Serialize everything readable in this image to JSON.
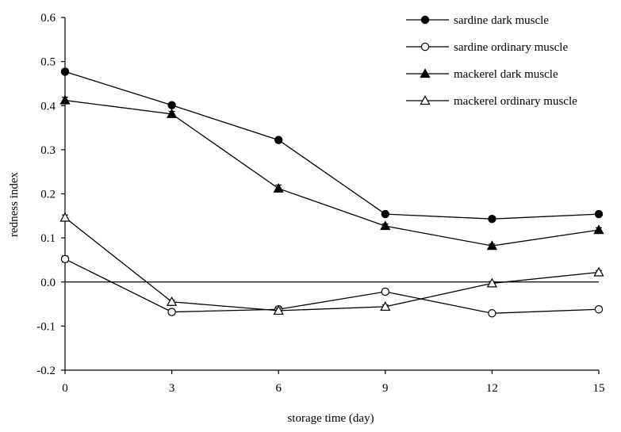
{
  "chart_data": {
    "type": "line",
    "title": "",
    "xlabel": "storage time (day)",
    "ylabel": "redness index",
    "x": [
      0,
      3,
      6,
      9,
      12,
      15
    ],
    "xticks": [
      "0",
      "3",
      "6",
      "9",
      "12",
      "15"
    ],
    "yticks": [
      "0.6",
      "0.5",
      "0.4",
      "0.3",
      "0.2",
      "0.1",
      "0.0",
      "-0.1",
      "-0.2"
    ],
    "xlim": [
      0,
      15
    ],
    "ylim": [
      -0.2,
      0.6
    ],
    "grid": false,
    "zero_line": true,
    "legend_position": "top-right",
    "series": [
      {
        "name": "sardine dark muscle",
        "marker": "filled-circle",
        "values": [
          0.477,
          0.401,
          0.322,
          0.154,
          0.143,
          0.154
        ],
        "errors": [
          0.006,
          0.004,
          0.004,
          0.004,
          0.004,
          0.004
        ]
      },
      {
        "name": "sardine ordinary muscle",
        "marker": "open-circle",
        "values": [
          0.052,
          -0.068,
          -0.062,
          -0.022,
          -0.071,
          -0.062
        ],
        "errors": [
          0.007,
          0.006,
          0.006,
          0.004,
          0.004,
          0.004
        ]
      },
      {
        "name": "mackerel dark muscle",
        "marker": "filled-triangle",
        "values": [
          0.412,
          0.381,
          0.212,
          0.127,
          0.082,
          0.118
        ],
        "errors": [
          0.007,
          0.006,
          0.008,
          0.005,
          0.004,
          0.005
        ]
      },
      {
        "name": "mackerel ordinary muscle",
        "marker": "open-triangle",
        "values": [
          0.146,
          -0.045,
          -0.065,
          -0.056,
          -0.003,
          0.022
        ],
        "errors": [
          0.006,
          0.004,
          0.006,
          0.004,
          0.004,
          0.004
        ]
      }
    ]
  }
}
